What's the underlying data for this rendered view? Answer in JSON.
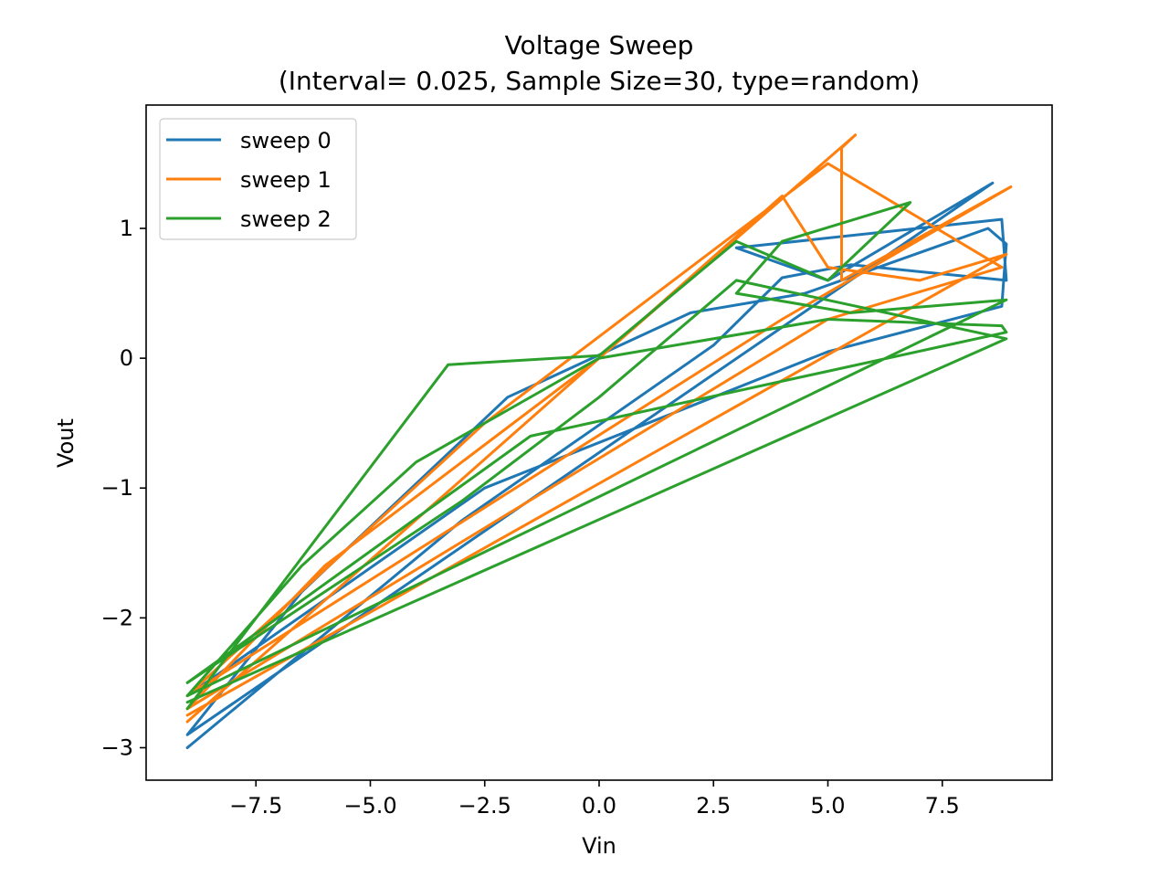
{
  "chart_data": {
    "type": "line",
    "title": "Voltage Sweep",
    "subtitle": "(Interval= 0.025, Sample Size=30, type=random)",
    "xlabel": "Vin",
    "ylabel": "Vout",
    "xlim": [
      -9.9,
      9.9
    ],
    "ylim": [
      -3.25,
      1.95
    ],
    "x_ticks": [
      -7.5,
      -5.0,
      -2.5,
      0.0,
      2.5,
      5.0,
      7.5
    ],
    "x_tick_labels": [
      "−7.5",
      "−5.0",
      "−2.5",
      "0.0",
      "2.5",
      "5.0",
      "7.5"
    ],
    "y_ticks": [
      -3,
      -2,
      -1,
      0,
      1
    ],
    "y_tick_labels": [
      "−3",
      "−2",
      "−1",
      "0",
      "1"
    ],
    "grid": false,
    "legend_position": "upper-left",
    "series": [
      {
        "name": "sweep 0",
        "color": "#1f77b4",
        "x": [
          -9.0,
          -3.0,
          2.5,
          4.0,
          5.5,
          8.9,
          8.8,
          3.0,
          5.0,
          8.6,
          -9.0,
          -6.5,
          -2.0,
          2.0,
          4.5,
          8.5,
          8.9,
          8.8,
          5.0,
          -2.5,
          -9.0
        ],
        "y": [
          -3.0,
          -1.25,
          0.1,
          0.62,
          0.72,
          0.6,
          1.07,
          0.85,
          0.6,
          1.35,
          -2.9,
          -1.8,
          -0.3,
          0.35,
          0.5,
          1.0,
          0.88,
          0.4,
          0.05,
          -1.0,
          -2.6
        ]
      },
      {
        "name": "sweep 1",
        "color": "#ff7f0e",
        "x": [
          -9.0,
          0.0,
          5.6,
          5.3,
          5.3,
          9.0,
          4.0,
          -9.0,
          -2.5,
          5.0,
          8.8,
          5.0,
          -9.0,
          -6.0,
          0.0,
          4.0,
          5.0,
          7.0,
          8.9,
          -9.0
        ],
        "y": [
          -2.8,
          0.0,
          1.72,
          1.62,
          0.6,
          1.32,
          0.3,
          -2.6,
          -0.5,
          1.5,
          0.7,
          0.3,
          -2.7,
          -1.6,
          0.0,
          1.25,
          0.7,
          0.6,
          0.8,
          -2.75
        ]
      },
      {
        "name": "sweep 2",
        "color": "#2ca02c",
        "x": [
          -9.0,
          -3.3,
          0.0,
          3.0,
          5.0,
          6.8,
          4.0,
          3.0,
          5.5,
          8.9,
          -9.0,
          -6.5,
          -4.0,
          0.0,
          5.0,
          8.8,
          8.9,
          -1.5,
          -9.0,
          -3.0,
          0.0,
          3.0,
          8.9,
          -9.0
        ],
        "y": [
          -2.7,
          -0.05,
          0.02,
          0.9,
          0.6,
          1.2,
          0.9,
          0.5,
          0.35,
          0.45,
          -2.6,
          -1.6,
          -0.8,
          0.0,
          0.3,
          0.25,
          0.2,
          -0.6,
          -2.5,
          -1.1,
          -0.3,
          0.6,
          0.15,
          -2.65
        ]
      }
    ]
  }
}
